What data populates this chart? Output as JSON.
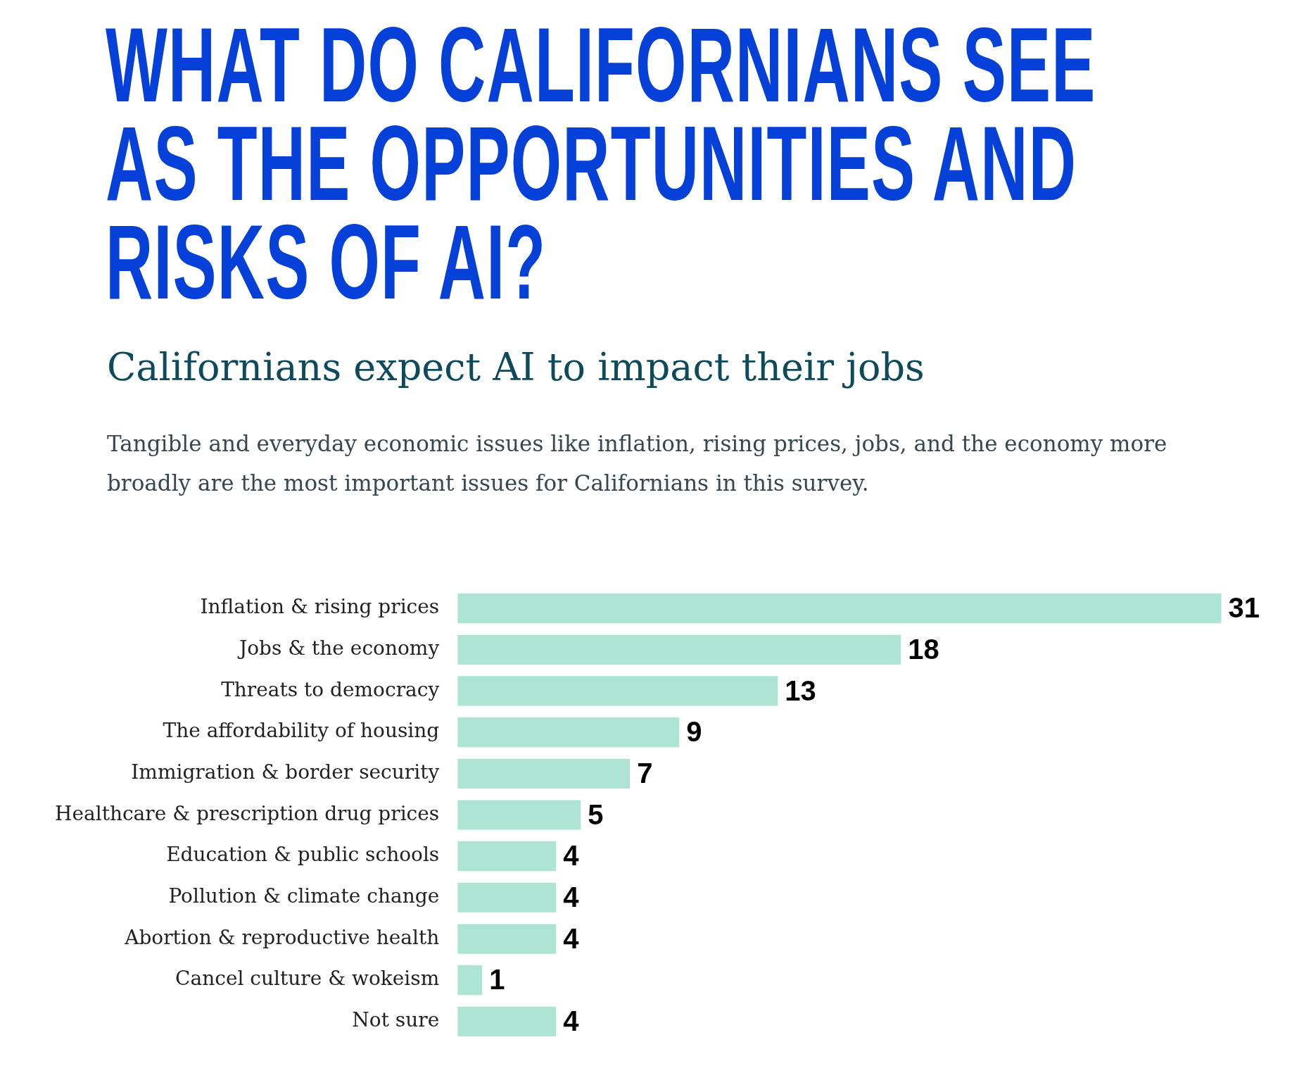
{
  "chart_data": {
    "type": "bar",
    "orientation": "horizontal",
    "title": "WHAT DO CALIFORNIANS SEE AS THE OPPORTUNITIES AND RISKS OF AI?",
    "subtitle": "Californians expect AI to impact their jobs",
    "annotations": [
      "Tangible and everyday economic issues like inflation, rising prices, jobs, and the economy more broadly are the most important issues for Californians in this survey."
    ],
    "categories": [
      "Inflation & rising prices",
      "Jobs & the economy",
      "Threats to democracy",
      "The affordability of housing",
      "Immigration & border security",
      "Healthcare & prescription drug prices",
      "Education & public schools",
      "Pollution & climate change",
      "Abortion & reproductive health",
      "Cancel culture & wokeism",
      "Not sure"
    ],
    "values": [
      31,
      18,
      13,
      9,
      7,
      5,
      4,
      4,
      4,
      1,
      4
    ],
    "color": "#ade4d3",
    "data_labels": true
  }
}
